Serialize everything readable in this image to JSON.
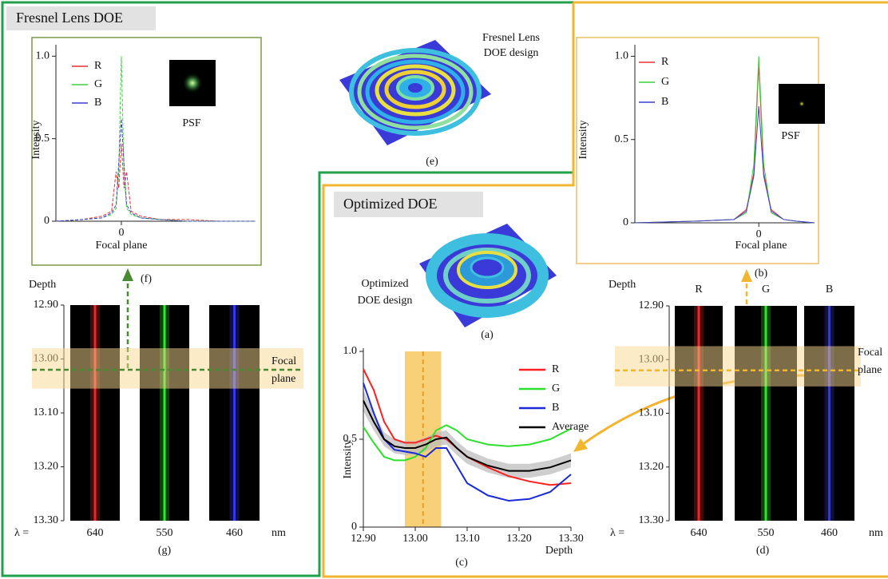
{
  "fresnel": {
    "title": "Fresnel Lens DOE",
    "design_caption": [
      "Fresnel Lens",
      "DOE design"
    ],
    "design_label": "(e)",
    "psf_chart": {
      "type": "line",
      "dashed": true,
      "ylabel": "Intensity",
      "xlabel": "Focal plane",
      "inset_label": "PSF",
      "xlim": [
        -1,
        2.05
      ],
      "ylim": [
        0,
        1.05
      ],
      "xticks": [
        0
      ],
      "yticks": [
        0,
        0.5,
        {
          "value": 1,
          "label": "1.0"
        }
      ],
      "x": [
        -1,
        -0.6,
        -0.3,
        -0.15,
        -0.08,
        -0.04,
        0,
        0.04,
        0.08,
        0.15,
        0.3,
        0.6,
        1,
        1.5,
        2.05
      ],
      "series": [
        {
          "name": "R",
          "color": "#e8322e",
          "values": [
            0,
            0.01,
            0.03,
            0.06,
            0.3,
            0.2,
            0.47,
            0.2,
            0.3,
            0.06,
            0.03,
            0.01,
            0.01,
            0,
            0
          ]
        },
        {
          "name": "G",
          "color": "#3bd23b",
          "values": [
            0,
            0.01,
            0.02,
            0.04,
            0.08,
            0.3,
            1.0,
            0.3,
            0.08,
            0.04,
            0.02,
            0.01,
            0,
            0,
            0
          ]
        },
        {
          "name": "B",
          "color": "#3f3fd0",
          "values": [
            0,
            0.01,
            0.02,
            0.05,
            0.1,
            0.35,
            0.62,
            0.35,
            0.1,
            0.05,
            0.02,
            0.01,
            0,
            0,
            0
          ]
        }
      ]
    },
    "psf_label": "(f)",
    "depth_panel": {
      "depth_label": "Depth",
      "lambda_label": "λ =",
      "unit": "nm",
      "focal_label": [
        "Focal",
        "plane"
      ],
      "ylim": [
        12.9,
        13.3
      ],
      "yticks": [
        {
          "value": 12.9,
          "label": "12.90"
        },
        {
          "value": 13.0,
          "label": "13.00"
        },
        {
          "value": 13.1,
          "label": "13.10"
        },
        {
          "value": 13.2,
          "label": "13.20"
        },
        {
          "value": 13.3,
          "label": "13.30"
        }
      ],
      "focal_band": [
        12.98,
        13.055
      ],
      "focal_depth": 13.02,
      "channels": [
        {
          "wavelength": 640,
          "color": "#ff2a2a"
        },
        {
          "wavelength": 550,
          "color": "#2aff2a"
        },
        {
          "wavelength": 460,
          "color": "#3a3aff"
        }
      ]
    },
    "depth_caption": "(g)"
  },
  "optimized": {
    "title": "Optimized DOE",
    "design_caption": [
      "Optimized",
      "DOE design"
    ],
    "design_label": "(a)",
    "psf_chart": {
      "type": "line",
      "dashed": false,
      "ylabel": "Intensity",
      "xlabel": "Focal plane",
      "inset_label": "PSF",
      "xlim": [
        -1,
        0.45
      ],
      "ylim": [
        0,
        1.05
      ],
      "xticks": [
        0
      ],
      "yticks": [
        0,
        0.5,
        {
          "value": 1,
          "label": "1.0"
        }
      ],
      "x": [
        -1,
        -0.5,
        -0.2,
        -0.1,
        -0.04,
        0,
        0.04,
        0.1,
        0.2,
        0.3,
        0.45
      ],
      "series": [
        {
          "name": "R",
          "color": "#e8322e",
          "values": [
            0,
            0.01,
            0.02,
            0.08,
            0.3,
            0.95,
            0.3,
            0.08,
            0.02,
            0.01,
            0
          ]
        },
        {
          "name": "G",
          "color": "#3bd23b",
          "values": [
            0,
            0.01,
            0.02,
            0.06,
            0.35,
            1.0,
            0.35,
            0.06,
            0.02,
            0.01,
            0
          ]
        },
        {
          "name": "B",
          "color": "#3f3fd0",
          "values": [
            0,
            0.01,
            0.02,
            0.07,
            0.28,
            0.7,
            0.28,
            0.07,
            0.02,
            0.01,
            0
          ]
        }
      ]
    },
    "psf_label": "(b)",
    "intensity_chart": {
      "type": "line",
      "ylabel": "Intensity",
      "xlabel": "Depth",
      "xlim": [
        12.9,
        13.3
      ],
      "ylim": [
        0,
        1.0
      ],
      "xticks": [
        {
          "value": 12.9,
          "label": "12.90"
        },
        {
          "value": 13.0,
          "label": "13.00"
        },
        {
          "value": 13.1,
          "label": "13.10"
        },
        {
          "value": 13.2,
          "label": "13.20"
        },
        {
          "value": 13.3,
          "label": "13.30"
        }
      ],
      "yticks": [
        0,
        0.5,
        {
          "value": 1,
          "label": "1.0"
        }
      ],
      "focal_region": [
        12.98,
        13.05
      ],
      "focal_line": 13.015,
      "x": [
        12.9,
        12.92,
        12.94,
        12.96,
        12.98,
        13.0,
        13.02,
        13.04,
        13.06,
        13.08,
        13.1,
        13.14,
        13.18,
        13.22,
        13.26,
        13.3
      ],
      "band": {
        "lower": [
          0.66,
          0.55,
          0.46,
          0.42,
          0.41,
          0.41,
          0.43,
          0.46,
          0.47,
          0.41,
          0.36,
          0.31,
          0.28,
          0.28,
          0.3,
          0.34
        ],
        "upper": [
          0.78,
          0.65,
          0.54,
          0.5,
          0.49,
          0.49,
          0.51,
          0.54,
          0.55,
          0.49,
          0.44,
          0.39,
          0.36,
          0.36,
          0.38,
          0.42
        ]
      },
      "series": [
        {
          "name": "R",
          "color": "#ff2020",
          "values": [
            0.9,
            0.78,
            0.6,
            0.5,
            0.48,
            0.48,
            0.5,
            0.52,
            0.5,
            0.45,
            0.4,
            0.34,
            0.29,
            0.26,
            0.24,
            0.25
          ]
        },
        {
          "name": "G",
          "color": "#2ee02e",
          "values": [
            0.57,
            0.48,
            0.4,
            0.38,
            0.38,
            0.4,
            0.45,
            0.55,
            0.58,
            0.55,
            0.5,
            0.47,
            0.46,
            0.47,
            0.5,
            0.56
          ]
        },
        {
          "name": "B",
          "color": "#1a2ad8",
          "values": [
            0.82,
            0.65,
            0.5,
            0.44,
            0.43,
            0.42,
            0.4,
            0.45,
            0.45,
            0.35,
            0.25,
            0.18,
            0.15,
            0.16,
            0.2,
            0.3
          ]
        },
        {
          "name": "Average",
          "color": "#000000",
          "values": [
            0.72,
            0.6,
            0.5,
            0.46,
            0.45,
            0.45,
            0.47,
            0.5,
            0.51,
            0.45,
            0.4,
            0.35,
            0.32,
            0.32,
            0.34,
            0.38
          ]
        }
      ]
    },
    "intensity_label": "(c)",
    "depth_panel": {
      "depth_label": "Depth",
      "lambda_label": "λ =",
      "unit": "nm",
      "focal_label": [
        "Focal",
        "plane"
      ],
      "ylim": [
        12.9,
        13.3
      ],
      "yticks": [
        {
          "value": 12.9,
          "label": "12.90"
        },
        {
          "value": 13.0,
          "label": "13.00"
        },
        {
          "value": 13.1,
          "label": "13.10"
        },
        {
          "value": 13.2,
          "label": "13.20"
        },
        {
          "value": 13.3,
          "label": "13.30"
        }
      ],
      "focal_band": [
        12.975,
        13.05
      ],
      "focal_depth": 13.02,
      "channels": [
        {
          "name": "R",
          "wavelength": 640,
          "color": "#ff2a2a"
        },
        {
          "name": "G",
          "wavelength": 550,
          "color": "#2aff2a"
        },
        {
          "name": "B",
          "wavelength": 460,
          "color": "#3a3aff"
        }
      ]
    },
    "depth_caption": "(d)"
  }
}
